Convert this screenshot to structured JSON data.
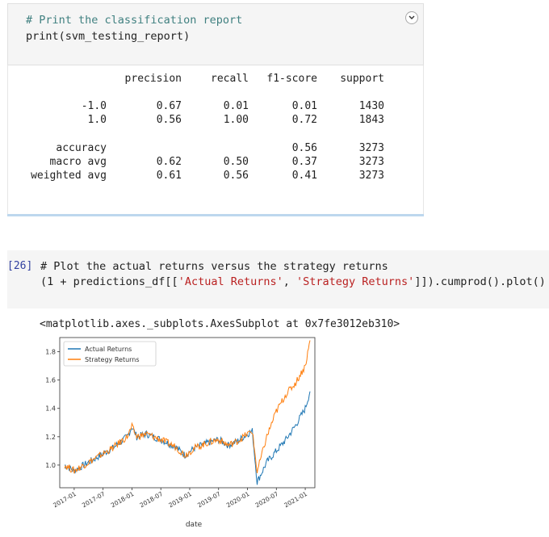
{
  "cell1": {
    "comment": "# Print the classification report",
    "code": "print(svm_testing_report)",
    "report": {
      "headers": [
        "precision",
        "recall",
        "f1-score",
        "support"
      ],
      "rows": [
        {
          "label": "-1.0",
          "precision": "0.67",
          "recall": "0.01",
          "f1": "0.01",
          "support": "1430"
        },
        {
          "label": "1.0",
          "precision": "0.56",
          "recall": "1.00",
          "f1": "0.72",
          "support": "1843"
        },
        {
          "label": "accuracy",
          "precision": "",
          "recall": "",
          "f1": "0.56",
          "support": "3273"
        },
        {
          "label": "macro avg",
          "precision": "0.62",
          "recall": "0.50",
          "f1": "0.37",
          "support": "3273"
        },
        {
          "label": "weighted avg",
          "precision": "0.61",
          "recall": "0.56",
          "f1": "0.41",
          "support": "3273"
        }
      ]
    }
  },
  "cell2": {
    "prompt": "[26]",
    "comment": "# Plot the actual returns versus the strategy returns",
    "code_pre": "(1 + predictions_df[[",
    "str1": "'Actual Returns'",
    "sep": ", ",
    "str2": "'Strategy Returns'",
    "code_post": "]]).cumprod().plot()",
    "output_repr": "<matplotlib.axes._subplots.AxesSubplot at 0x7fe3012eb310>"
  },
  "chart_data": {
    "type": "line",
    "xlabel": "date",
    "ylabel": "",
    "x_ticks": [
      "2017-01",
      "2017-07",
      "2018-01",
      "2018-07",
      "2019-01",
      "2019-07",
      "2020-01",
      "2020-07",
      "2021-01"
    ],
    "y_ticks": [
      "1.0",
      "1.2",
      "1.4",
      "1.6",
      "1.8"
    ],
    "ylim": [
      0.84,
      1.9
    ],
    "xlim": [
      "2016-10",
      "2021-03"
    ],
    "legend": "top-left",
    "series": [
      {
        "name": "Actual Returns",
        "color": "#1f77b4",
        "points": [
          [
            "2016-11",
            1.0
          ],
          [
            "2017-01",
            0.96
          ],
          [
            "2017-03",
            1.0
          ],
          [
            "2017-06",
            1.06
          ],
          [
            "2017-09",
            1.12
          ],
          [
            "2017-12",
            1.2
          ],
          [
            "2018-01",
            1.27
          ],
          [
            "2018-02",
            1.2
          ],
          [
            "2018-04",
            1.22
          ],
          [
            "2018-07",
            1.18
          ],
          [
            "2018-10",
            1.13
          ],
          [
            "2018-12",
            1.07
          ],
          [
            "2019-02",
            1.12
          ],
          [
            "2019-05",
            1.16
          ],
          [
            "2019-07",
            1.18
          ],
          [
            "2019-09",
            1.14
          ],
          [
            "2019-11",
            1.17
          ],
          [
            "2020-01",
            1.22
          ],
          [
            "2020-02",
            1.24
          ],
          [
            "2020-03",
            0.88
          ],
          [
            "2020-05",
            1.02
          ],
          [
            "2020-07",
            1.1
          ],
          [
            "2020-09",
            1.18
          ],
          [
            "2020-11",
            1.28
          ],
          [
            "2021-01",
            1.4
          ],
          [
            "2021-02",
            1.52
          ]
        ]
      },
      {
        "name": "Strategy Returns",
        "color": "#ff7f0e",
        "points": [
          [
            "2016-11",
            1.0
          ],
          [
            "2017-01",
            0.96
          ],
          [
            "2017-03",
            1.0
          ],
          [
            "2017-06",
            1.06
          ],
          [
            "2017-09",
            1.12
          ],
          [
            "2017-12",
            1.2
          ],
          [
            "2018-01",
            1.27
          ],
          [
            "2018-02",
            1.2
          ],
          [
            "2018-04",
            1.22
          ],
          [
            "2018-07",
            1.18
          ],
          [
            "2018-10",
            1.13
          ],
          [
            "2018-12",
            1.07
          ],
          [
            "2019-02",
            1.12
          ],
          [
            "2019-05",
            1.16
          ],
          [
            "2019-07",
            1.18
          ],
          [
            "2019-09",
            1.14
          ],
          [
            "2019-11",
            1.17
          ],
          [
            "2020-01",
            1.22
          ],
          [
            "2020-02",
            1.24
          ],
          [
            "2020-03",
            0.95
          ],
          [
            "2020-05",
            1.2
          ],
          [
            "2020-07",
            1.38
          ],
          [
            "2020-09",
            1.5
          ],
          [
            "2020-11",
            1.58
          ],
          [
            "2021-01",
            1.7
          ],
          [
            "2021-02",
            1.88
          ]
        ]
      }
    ]
  }
}
